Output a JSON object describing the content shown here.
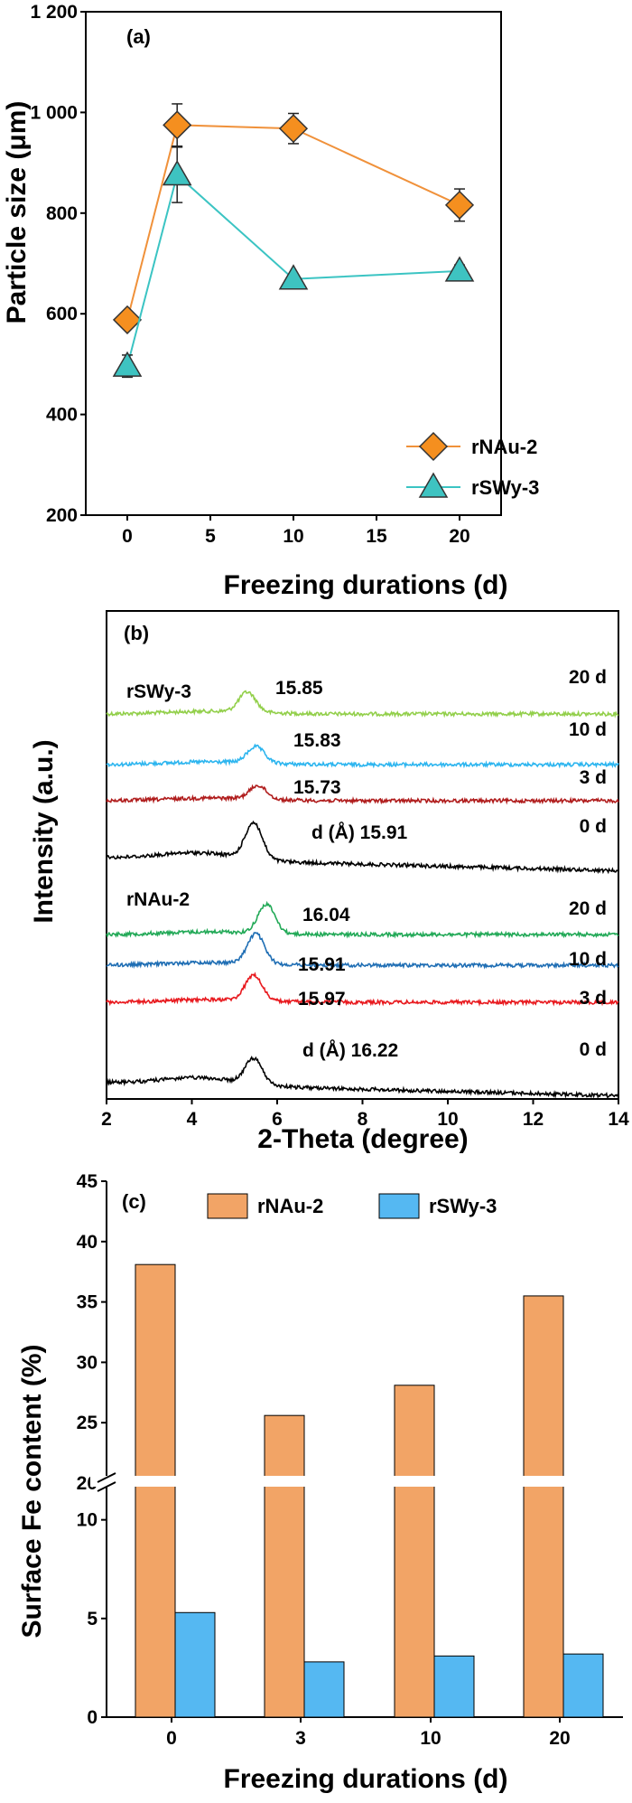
{
  "colors": {
    "rNAu2_line": "#f0913a",
    "rNAu2_fill": "#f58f1f",
    "rSWy3_line": "#3bc4c3",
    "rSWy3_fill": "#3ec3c1",
    "bar_rNAu2": "#f2a466",
    "bar_rSWy3": "#55b8f2",
    "xrd_rSWy3": [
      "#92cf4a",
      "#2cb5ef",
      "#b01c1c",
      "#000000"
    ],
    "xrd_rNAu2": [
      "#22a957",
      "#1f6eb4",
      "#e8191e",
      "#000000"
    ]
  },
  "chart_data": [
    {
      "type": "line",
      "panel": "(a)",
      "xlabel": "Freezing durations (d)",
      "ylabel": "Particle size (μm)",
      "xlim": [
        -2.5,
        22.5
      ],
      "ylim": [
        200,
        1200
      ],
      "xticks": [
        0,
        5,
        10,
        15,
        20
      ],
      "yticks": [
        200,
        400,
        600,
        800,
        1000,
        1200
      ],
      "ytick_labels": [
        "200",
        "400",
        "600",
        "800",
        "1 000",
        "1 200"
      ],
      "legend_position": "bottom-right",
      "series": [
        {
          "name": "rNAu-2",
          "marker": "diamond",
          "x": [
            0,
            3,
            10,
            20
          ],
          "y": [
            588,
            975,
            968,
            816
          ],
          "err": [
            10,
            42,
            30,
            32
          ]
        },
        {
          "name": "rSWy-3",
          "marker": "triangle",
          "x": [
            0,
            3,
            10,
            20
          ],
          "y": [
            496,
            876,
            669,
            685
          ],
          "err": [
            22,
            55,
            8,
            12
          ]
        }
      ]
    },
    {
      "type": "line",
      "panel": "(b)",
      "xlabel": "2-Theta (degree)",
      "ylabel": "Intensity (a.u.)",
      "xlim": [
        2,
        14
      ],
      "xticks": [
        2,
        4,
        6,
        8,
        10,
        12,
        14
      ],
      "groups": [
        {
          "name": "rSWy-3",
          "series": [
            {
              "duration": "20 d",
              "d_label": "15.85",
              "peak_2theta": 5.3
            },
            {
              "duration": "10 d",
              "d_label": "15.83",
              "peak_2theta": 5.5
            },
            {
              "duration": "3 d",
              "d_label": "15.73",
              "peak_2theta": 5.55
            },
            {
              "duration": "0 d",
              "d_label": "d (Å) 15.91",
              "peak_2theta": 5.45
            }
          ]
        },
        {
          "name": "rNAu-2",
          "series": [
            {
              "duration": "20 d",
              "d_label": "16.04",
              "peak_2theta": 5.75
            },
            {
              "duration": "10 d",
              "d_label": "15.91",
              "peak_2theta": 5.5
            },
            {
              "duration": "3 d",
              "d_label": "15.97",
              "peak_2theta": 5.45
            },
            {
              "duration": "0 d",
              "d_label": "d (Å) 16.22",
              "peak_2theta": 5.45
            }
          ]
        }
      ]
    },
    {
      "type": "bar",
      "panel": "(c)",
      "xlabel": "Freezing durations (d)",
      "ylabel": "Surface Fe content (%)",
      "categories": [
        "0",
        "3",
        "10",
        "20"
      ],
      "axis_break": [
        12,
        20
      ],
      "yticks": [
        0,
        5,
        10,
        20,
        25,
        30,
        35,
        40,
        45
      ],
      "legend_position": "top",
      "series": [
        {
          "name": "rNAu-2",
          "values": [
            38.1,
            25.6,
            28.1,
            35.5
          ]
        },
        {
          "name": "rSWy-3",
          "values": [
            5.3,
            2.8,
            3.1,
            3.2
          ]
        }
      ]
    }
  ]
}
